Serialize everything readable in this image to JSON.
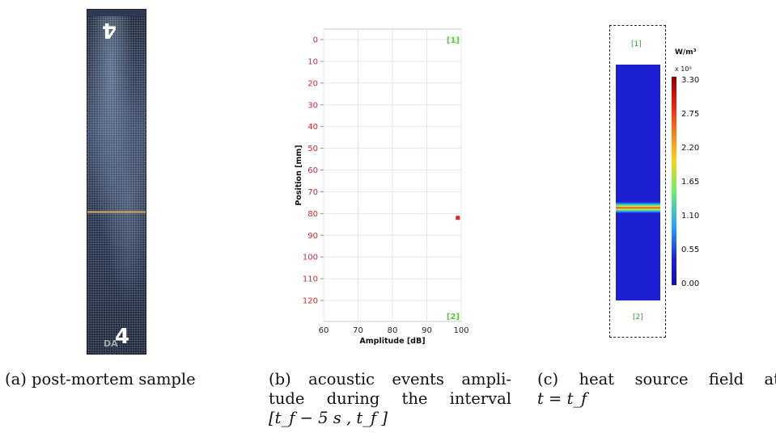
{
  "panel_a": {
    "caption": "(a) post-mortem sample",
    "mark_top": "4",
    "mark_bottom": "4",
    "mark_small": "DA"
  },
  "panel_b": {
    "caption_lines": [
      "(b) acoustic events ampli-",
      "tude during the interval",
      "[t_f − 5 s , t_f ]"
    ],
    "chart_data": {
      "type": "scatter",
      "xlabel": "Amplitude [dB]",
      "ylabel": "Position [mm]",
      "xlim": [
        60,
        100
      ],
      "ylim": [
        0,
        125
      ],
      "y_inverted": true,
      "x_ticks": [
        60,
        70,
        80,
        90,
        100
      ],
      "y_ticks": [
        0,
        10,
        20,
        30,
        40,
        50,
        60,
        70,
        80,
        90,
        100,
        110,
        120
      ],
      "grid": true,
      "annotations": [
        "[1]",
        "[2]"
      ],
      "series": [
        {
          "points": [
            {
              "x": 99,
              "y": 82
            }
          ],
          "color": "#e0202a"
        }
      ],
      "tick_color": "#e0202a",
      "annotation_color": "#5ac83a"
    }
  },
  "panel_c": {
    "caption_lines": [
      "(c) heat source field at",
      "t = t_f"
    ],
    "label_top": "[1]",
    "label_bottom": "[2]",
    "unit": "W/m³",
    "unit_scale": "x 10⁹",
    "colorbar_ticks": [
      "3.30",
      "2.75",
      "2.20",
      "1.65",
      "1.10",
      "0.55",
      "0.00"
    ]
  }
}
